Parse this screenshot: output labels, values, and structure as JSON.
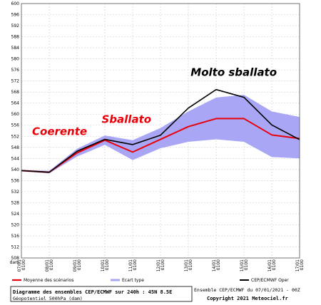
{
  "chart_data": {
    "type": "line",
    "y_unit_label": "dam",
    "ylim": [
      508,
      600
    ],
    "y_ticks": [
      508,
      512,
      516,
      520,
      524,
      528,
      532,
      536,
      540,
      544,
      548,
      552,
      556,
      560,
      564,
      568,
      572,
      576,
      580,
      584,
      588,
      592,
      596,
      600
    ],
    "categories": [
      [
        "07/01",
        "0100"
      ],
      [
        "08/01",
        "0100"
      ],
      [
        "09/01",
        "0100"
      ],
      [
        "10/01",
        "0100"
      ],
      [
        "11/01",
        "0100"
      ],
      [
        "12/01",
        "0100"
      ],
      [
        "13/01",
        "0100"
      ],
      [
        "14/01",
        "0100"
      ],
      [
        "15/01",
        "0100"
      ],
      [
        "16/01",
        "0100"
      ],
      [
        "17/01",
        "0100"
      ]
    ],
    "x": [
      0,
      1,
      2,
      3,
      4,
      5,
      6,
      7,
      8,
      9,
      10
    ],
    "series": [
      {
        "name": "Moyenne des scénarios",
        "color": "#e8000b",
        "values": [
          539.6,
          539.0,
          546.0,
          550.6,
          546.3,
          550.9,
          555.5,
          558.4,
          558.4,
          552.5,
          551.2
        ]
      },
      {
        "name": "CEP/ECMWF Oper",
        "color": "#000000",
        "values": [
          539.6,
          539.0,
          546.6,
          550.9,
          549.0,
          552.4,
          562.2,
          568.9,
          566.1,
          556.1,
          550.8
        ]
      }
    ],
    "band": {
      "name": "Ecart type",
      "color": "#a9a6f5",
      "upper": [
        539.8,
        539.5,
        547.5,
        552.3,
        550.6,
        555.0,
        561.0,
        566.0,
        567.0,
        561.0,
        559.0
      ],
      "lower": [
        539.3,
        538.6,
        544.7,
        548.9,
        543.4,
        547.7,
        550.0,
        550.9,
        550.0,
        544.5,
        544.0
      ]
    },
    "annotations": [
      {
        "text": "Coerente",
        "x": 1.0,
        "y": 552.5,
        "color": "#e8000b"
      },
      {
        "text": "Sballato",
        "x": 3.5,
        "y": 556.8,
        "color": "#e8000b"
      },
      {
        "text": "Molto sballato",
        "x": 6.7,
        "y": 573.8,
        "color": "#000000"
      }
    ],
    "grid": true
  },
  "footer": {
    "title": "Diagramme des ensembles CEP/ECMWF sur 240h : 45N 8.5E",
    "subtitle": "Géopotentiel 500hPa (dam)",
    "run_info": "Ensemble CEP/ECMWF du 07/01/2021 - 00Z",
    "copyright": "Copyright 2021 Meteociel.fr"
  }
}
